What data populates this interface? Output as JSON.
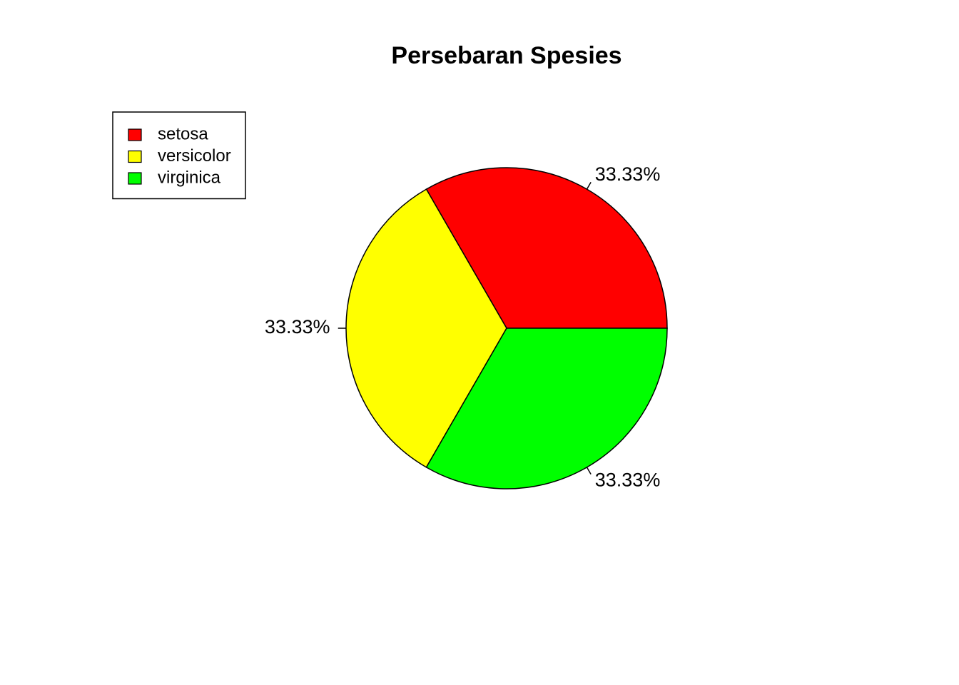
{
  "chart_data": {
    "type": "pie",
    "title": "Persebaran Spesies",
    "categories": [
      "setosa",
      "versicolor",
      "virginica"
    ],
    "values": [
      33.33,
      33.33,
      33.33
    ],
    "value_labels": [
      "33.33%",
      "33.33%",
      "33.33%"
    ],
    "colors": [
      "#ff0000",
      "#ffff00",
      "#00ff00"
    ],
    "legend": "topleft"
  }
}
